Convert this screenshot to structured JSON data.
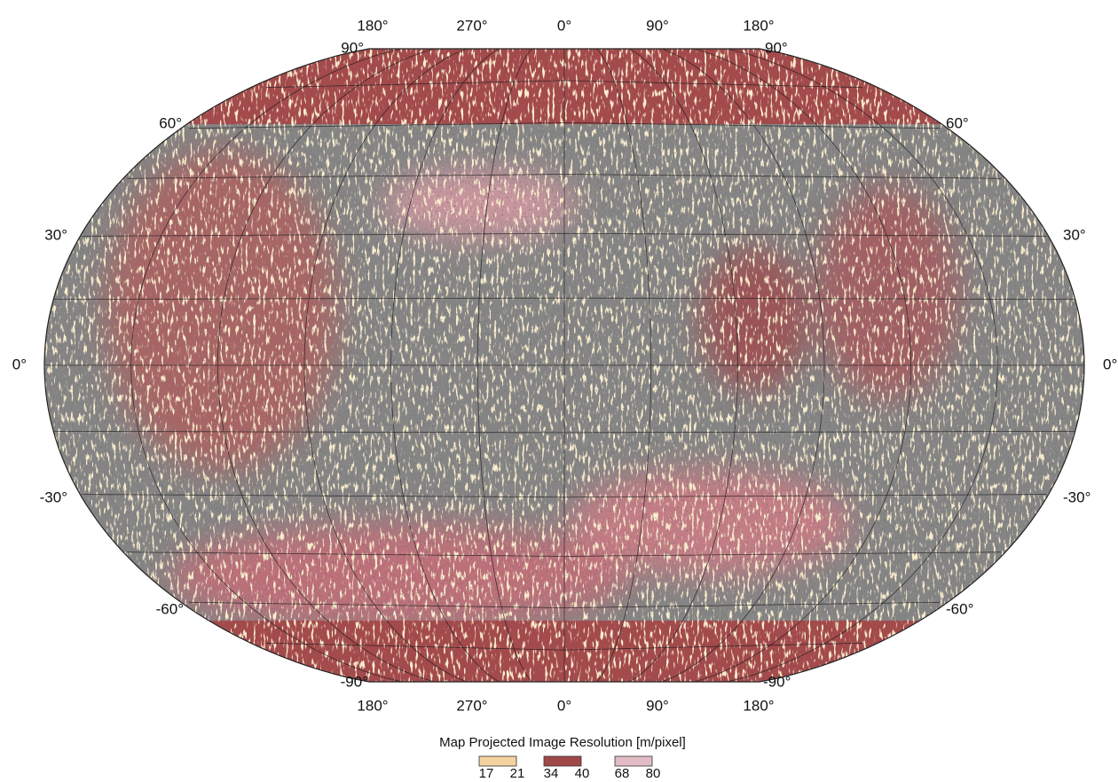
{
  "map": {
    "top_longitude_labels": [
      "180°",
      "270°",
      "0°",
      "90°",
      "180°"
    ],
    "bottom_longitude_labels": [
      "180°",
      "270°",
      "0°",
      "90°",
      "180°"
    ],
    "left_latitude_labels": [
      "90°",
      "60°",
      "30°",
      "0°",
      "-30°",
      "-60°",
      "-90°"
    ],
    "right_latitude_labels": [
      "90°",
      "60°",
      "30°",
      "0°",
      "-30°",
      "-60°",
      "-90°"
    ],
    "legend": {
      "title": "Map Projected Image Resolution [m/pixel]",
      "items": [
        {
          "color": "#f5d3a0",
          "low": 17,
          "high": 21
        },
        {
          "color": "#a04848",
          "low": 34,
          "high": 40
        },
        {
          "color": "#e2bcc4",
          "low": 68,
          "high": 80
        }
      ]
    }
  }
}
